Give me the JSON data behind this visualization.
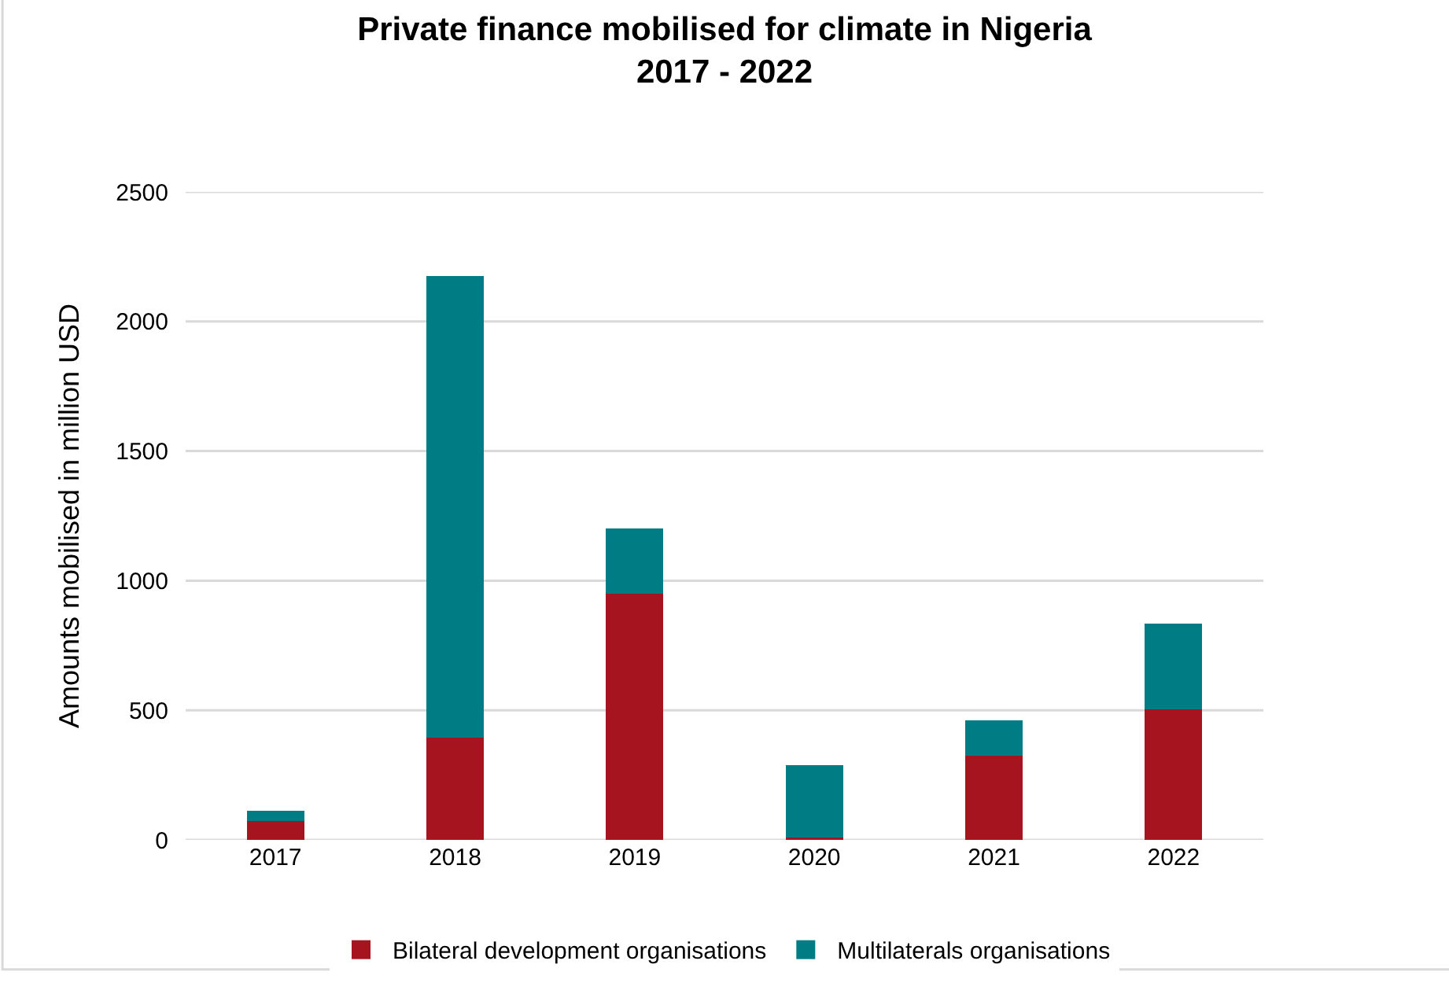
{
  "chart_data": {
    "type": "bar",
    "title": "Private finance mobilised for climate in Nigeria\n2017 - 2022",
    "ylabel": "Amounts mobilised in million USD",
    "categories": [
      "2017",
      "2018",
      "2019",
      "2020",
      "2021",
      "2022"
    ],
    "series": [
      {
        "name": "Bilateral development organisations",
        "color": "#a6141f",
        "values": [
          74,
          395,
          950,
          8,
          326,
          504
        ]
      },
      {
        "name": "Multilaterals organisations",
        "color": "#007c84",
        "values": [
          38,
          1780,
          250,
          280,
          136,
          330
        ]
      }
    ],
    "stacked": true,
    "ylim": [
      0,
      2500
    ],
    "yticks": [
      0,
      500,
      1000,
      1500,
      2000,
      2500
    ],
    "grid": "y",
    "legend": "bottom"
  }
}
